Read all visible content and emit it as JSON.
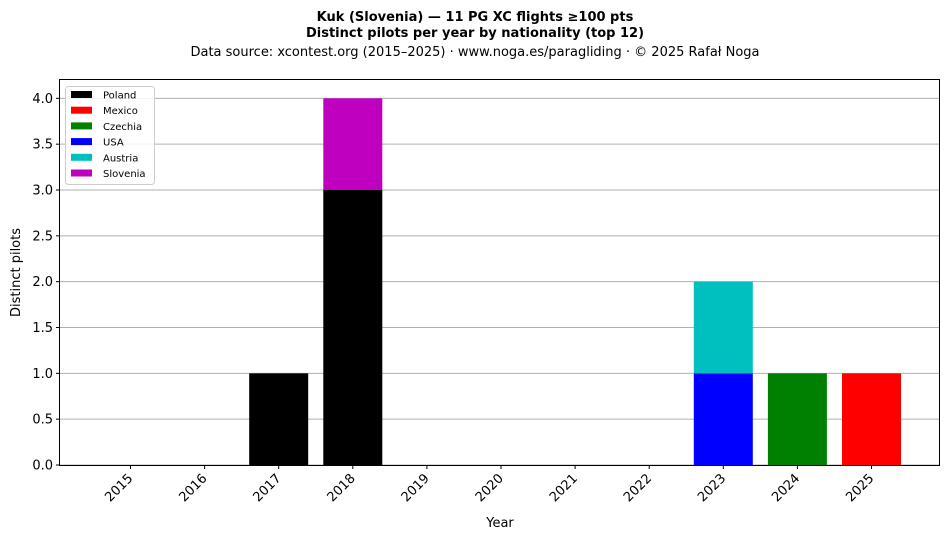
{
  "chart_data": {
    "type": "bar",
    "stacked": true,
    "title_line1": "Kuk (Slovenia)  —  11 PG XC flights ≥100 pts",
    "title_line2": "Distinct pilots per year by nationality (top 12)",
    "subtitle": "Data source: xcontest.org (2015–2025)  ·  www.noga.es/paragliding  ·  © 2025 Rafał Noga",
    "xlabel": "Year",
    "ylabel": "Distinct pilots",
    "ylim": [
      0,
      4.2
    ],
    "yticks": [
      "0.0",
      "0.5",
      "1.0",
      "1.5",
      "2.0",
      "2.5",
      "3.0",
      "3.5",
      "4.0"
    ],
    "grid": "horizontal",
    "legend_position": "top-left",
    "categories": [
      "2015",
      "2016",
      "2017",
      "2018",
      "2019",
      "2020",
      "2021",
      "2022",
      "2023",
      "2024",
      "2025"
    ],
    "series": [
      {
        "name": "Poland",
        "color": "#000000",
        "values": [
          0,
          0,
          1,
          3,
          0,
          0,
          0,
          0,
          0,
          0,
          0
        ]
      },
      {
        "name": "Mexico",
        "color": "#ff0000",
        "values": [
          0,
          0,
          0,
          0,
          0,
          0,
          0,
          0,
          0,
          0,
          1
        ]
      },
      {
        "name": "Czechia",
        "color": "#008000",
        "values": [
          0,
          0,
          0,
          0,
          0,
          0,
          0,
          0,
          0,
          1,
          0
        ]
      },
      {
        "name": "USA",
        "color": "#0000ff",
        "values": [
          0,
          0,
          0,
          0,
          0,
          0,
          0,
          0,
          1,
          0,
          0
        ]
      },
      {
        "name": "Austria",
        "color": "#00bfbf",
        "values": [
          0,
          0,
          0,
          0,
          0,
          0,
          0,
          0,
          1,
          0,
          0
        ]
      },
      {
        "name": "Slovenia",
        "color": "#bf00bf",
        "values": [
          0,
          0,
          0,
          1,
          0,
          0,
          0,
          0,
          0,
          0,
          0
        ]
      }
    ]
  }
}
